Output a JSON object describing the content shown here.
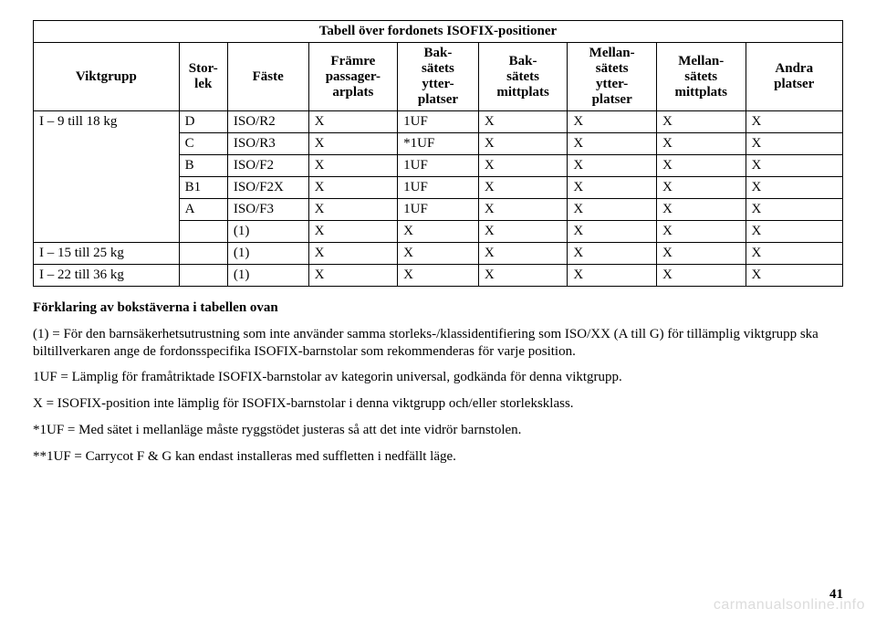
{
  "table": {
    "title": "Tabell över fordonets ISOFIX-positioner",
    "headers": {
      "c0": "Viktgrupp",
      "c1": "Stor-\nlek",
      "c2": "Fäste",
      "c3": "Främre\npassager-\narplats",
      "c4": "Bak-\nsätets\nytter-\nplatser",
      "c5": "Bak-\nsätets\nmittplats",
      "c6": "Mellan-\nsätets\nytter-\nplatser",
      "c7": "Mellan-\nsätets\nmittplats",
      "c8": "Andra\nplatser"
    },
    "groups": [
      {
        "label": "I – 9 till 18 kg",
        "rows": [
          {
            "c1": "D",
            "c2": "ISO/R2",
            "c3": "X",
            "c4": "1UF",
            "c5": "X",
            "c6": "X",
            "c7": "X",
            "c8": "X"
          },
          {
            "c1": "C",
            "c2": "ISO/R3",
            "c3": "X",
            "c4": "*1UF",
            "c5": "X",
            "c6": "X",
            "c7": "X",
            "c8": "X"
          },
          {
            "c1": "B",
            "c2": "ISO/F2",
            "c3": "X",
            "c4": "1UF",
            "c5": "X",
            "c6": "X",
            "c7": "X",
            "c8": "X"
          },
          {
            "c1": "B1",
            "c2": "ISO/F2X",
            "c3": "X",
            "c4": "1UF",
            "c5": "X",
            "c6": "X",
            "c7": "X",
            "c8": "X"
          },
          {
            "c1": "A",
            "c2": "ISO/F3",
            "c3": "X",
            "c4": "1UF",
            "c5": "X",
            "c6": "X",
            "c7": "X",
            "c8": "X"
          },
          {
            "c1": "",
            "c2": "(1)",
            "c3": "X",
            "c4": "X",
            "c5": "X",
            "c6": "X",
            "c7": "X",
            "c8": "X"
          }
        ]
      },
      {
        "label": "I – 15 till 25 kg",
        "rows": [
          {
            "c1": "",
            "c2": "(1)",
            "c3": "X",
            "c4": "X",
            "c5": "X",
            "c6": "X",
            "c7": "X",
            "c8": "X"
          }
        ]
      },
      {
        "label": "I – 22 till 36 kg",
        "rows": [
          {
            "c1": "",
            "c2": "(1)",
            "c3": "X",
            "c4": "X",
            "c5": "X",
            "c6": "X",
            "c7": "X",
            "c8": "X"
          }
        ]
      }
    ]
  },
  "notes": {
    "heading": "Förklaring av bokstäverna i tabellen ovan",
    "p1": "(1) = För den barnsäkerhetsutrustning som inte använder samma storleks-/klassidentifiering som ISO/XX (A till G) för tillämplig viktgrupp ska biltillverkaren ange de fordonsspecifika ISOFIX-barnstolar som rekommenderas för varje position.",
    "p2": "1UF = Lämplig för framåtriktade ISOFIX-barnstolar av kategorin universal, godkända för denna viktgrupp.",
    "p3": "X = ISOFIX-position inte lämplig för ISOFIX-barnstolar i denna viktgrupp och/eller storleksklass.",
    "p4": "*1UF = Med sätet i mellanläge måste ryggstödet justeras så att det inte vidrör barnstolen.",
    "p5": "**1UF = Carrycot F & G kan endast installeras med suffletten i nedfällt läge."
  },
  "pageNumber": "41",
  "watermark": "carmanualsonline.info",
  "layout": {
    "colWidths": [
      "18%",
      "6%",
      "10%",
      "11%",
      "10%",
      "11%",
      "11%",
      "11%",
      "12%"
    ]
  }
}
